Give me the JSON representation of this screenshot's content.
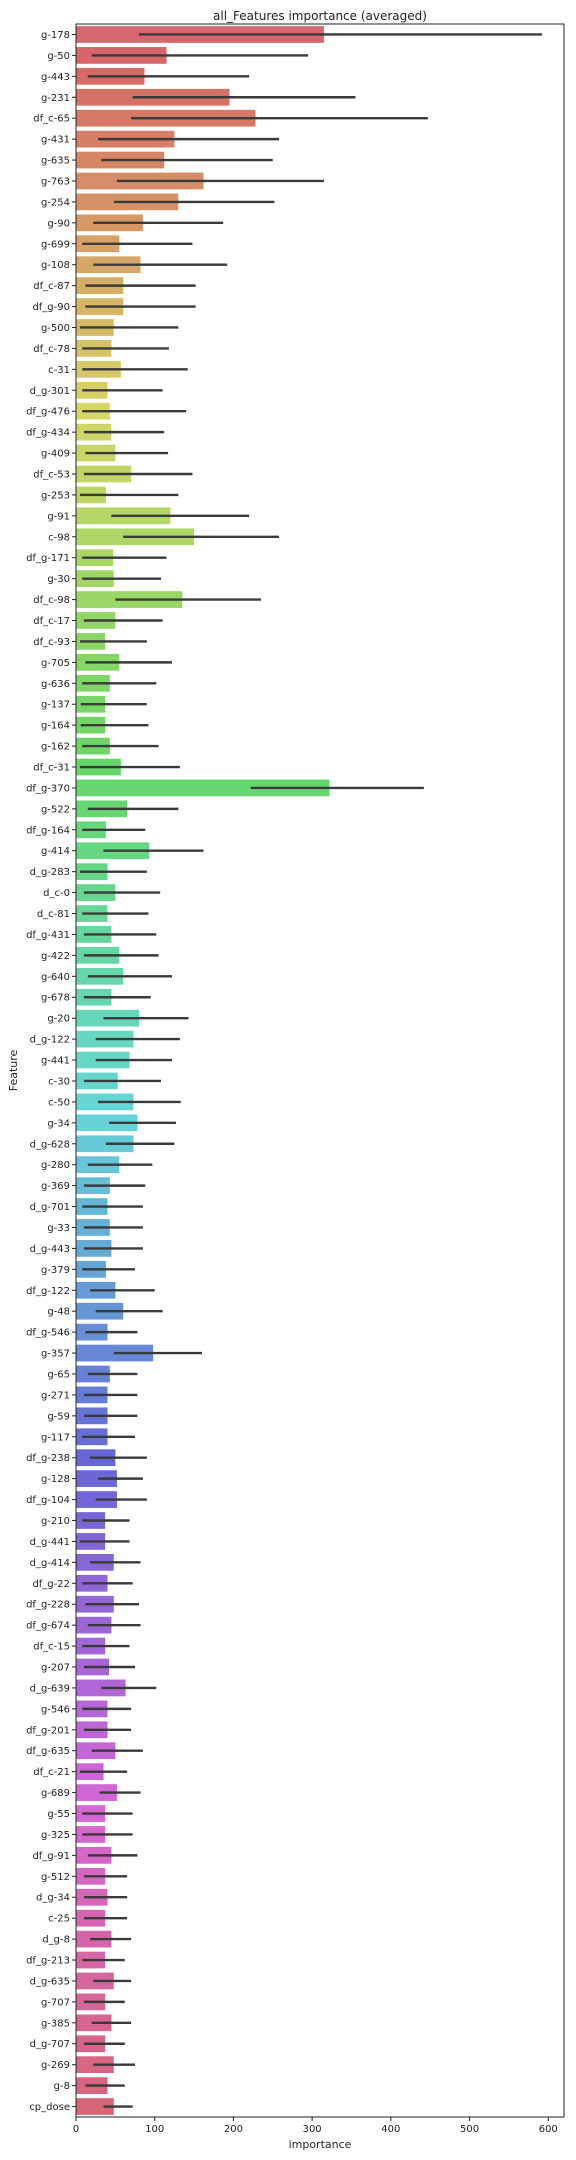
{
  "chart_data": {
    "type": "bar",
    "orientation": "horizontal",
    "title": "all_Features importance (averaged)",
    "xlabel": "importance",
    "ylabel": "Feature",
    "xlim": [
      0,
      620
    ],
    "xticks": [
      0,
      100,
      200,
      300,
      400,
      500,
      600
    ],
    "grid": false,
    "error_bars": true,
    "categories": [
      "g-178",
      "g-50",
      "g-443",
      "g-231",
      "df_c-65",
      "g-431",
      "g-635",
      "g-763",
      "g-254",
      "g-90",
      "g-699",
      "g-108",
      "df_c-87",
      "df_g-90",
      "g-500",
      "df_c-78",
      "c-31",
      "d_g-301",
      "df_g-476",
      "df_g-434",
      "g-409",
      "df_c-53",
      "g-253",
      "g-91",
      "c-98",
      "df_g-171",
      "g-30",
      "df_c-98",
      "df_c-17",
      "df_c-93",
      "g-705",
      "g-636",
      "g-137",
      "g-164",
      "g-162",
      "df_c-31",
      "df_g-370",
      "g-522",
      "df_g-164",
      "g-414",
      "d_g-283",
      "d_c-0",
      "d_c-81",
      "df_g-431",
      "g-422",
      "g-640",
      "g-678",
      "g-20",
      "d_g-122",
      "g-441",
      "c-30",
      "c-50",
      "g-34",
      "d_g-628",
      "g-280",
      "g-369",
      "d_g-701",
      "g-33",
      "d_g-443",
      "g-379",
      "df_g-122",
      "g-48",
      "df_g-546",
      "g-357",
      "g-65",
      "g-271",
      "g-59",
      "g-117",
      "df_g-238",
      "g-128",
      "df_g-104",
      "g-210",
      "d_g-441",
      "d_g-414",
      "df_g-22",
      "df_g-228",
      "df_g-674",
      "df_c-15",
      "g-207",
      "d_g-639",
      "g-546",
      "df_g-201",
      "df_g-635",
      "df_c-21",
      "g-689",
      "g-55",
      "g-325",
      "df_g-91",
      "g-512",
      "d_g-34",
      "c-25",
      "d_g-8",
      "df_g-213",
      "d_g-635",
      "g-707",
      "g-385",
      "d_g-707",
      "g-269",
      "g-8",
      "cp_dose"
    ],
    "values": [
      315,
      115,
      87,
      195,
      228,
      125,
      112,
      162,
      130,
      85,
      55,
      82,
      60,
      60,
      48,
      45,
      57,
      40,
      43,
      45,
      50,
      70,
      38,
      120,
      150,
      47,
      48,
      135,
      50,
      37,
      55,
      43,
      37,
      37,
      43,
      57,
      322,
      65,
      38,
      93,
      40,
      50,
      40,
      45,
      55,
      60,
      45,
      80,
      73,
      68,
      53,
      73,
      78,
      73,
      55,
      43,
      40,
      43,
      45,
      38,
      50,
      60,
      40,
      98,
      43,
      40,
      40,
      40,
      50,
      52,
      52,
      37,
      37,
      48,
      40,
      48,
      45,
      37,
      42,
      63,
      40,
      40,
      50,
      35,
      52,
      37,
      37,
      45,
      37,
      40,
      37,
      45,
      37,
      48,
      37,
      45,
      37,
      48,
      40,
      48
    ],
    "error_low": [
      80,
      20,
      15,
      72,
      70,
      28,
      32,
      52,
      48,
      22,
      8,
      22,
      12,
      12,
      5,
      8,
      8,
      8,
      8,
      10,
      12,
      10,
      5,
      45,
      60,
      8,
      8,
      50,
      10,
      5,
      12,
      8,
      6,
      6,
      8,
      5,
      222,
      15,
      8,
      35,
      5,
      10,
      8,
      10,
      10,
      15,
      10,
      35,
      25,
      25,
      10,
      28,
      42,
      38,
      15,
      10,
      8,
      10,
      10,
      8,
      18,
      25,
      12,
      48,
      15,
      10,
      10,
      8,
      18,
      28,
      25,
      8,
      5,
      18,
      8,
      12,
      15,
      8,
      10,
      32,
      8,
      10,
      20,
      5,
      30,
      8,
      8,
      15,
      10,
      10,
      10,
      18,
      8,
      22,
      10,
      20,
      10,
      22,
      12,
      35
    ],
    "error_high": [
      592,
      295,
      220,
      355,
      447,
      258,
      250,
      315,
      252,
      187,
      148,
      192,
      152,
      152,
      130,
      118,
      142,
      110,
      140,
      112,
      117,
      148,
      130,
      220,
      258,
      115,
      108,
      235,
      110,
      90,
      122,
      102,
      90,
      92,
      105,
      132,
      442,
      130,
      88,
      162,
      90,
      107,
      92,
      102,
      105,
      122,
      95,
      143,
      132,
      122,
      108,
      133,
      127,
      125,
      97,
      88,
      85,
      85,
      85,
      75,
      100,
      110,
      78,
      160,
      78,
      78,
      78,
      75,
      90,
      85,
      90,
      68,
      68,
      82,
      72,
      80,
      82,
      68,
      75,
      102,
      70,
      70,
      85,
      65,
      82,
      72,
      72,
      78,
      65,
      65,
      65,
      70,
      62,
      70,
      62,
      70,
      62,
      75,
      62,
      72
    ]
  }
}
